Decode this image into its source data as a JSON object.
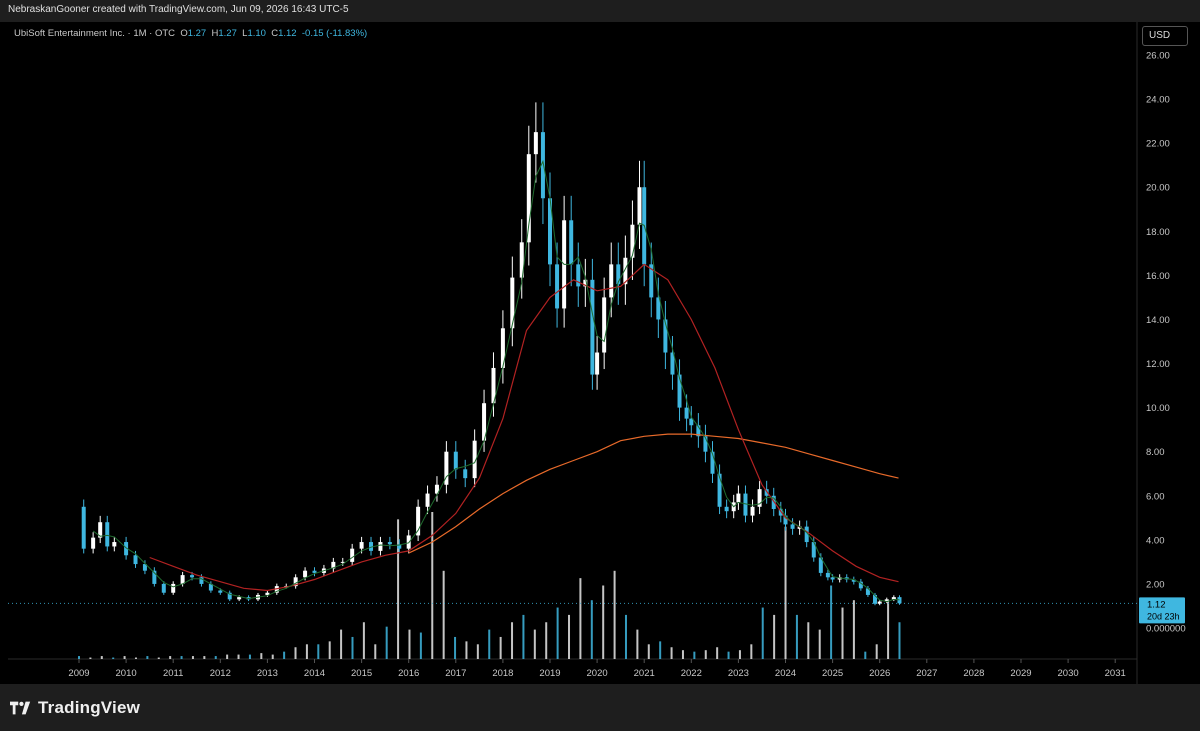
{
  "header": {
    "watermark": "NebraskanGooner created with TradingView.com, Jun 09, 2026 16:43 UTC-5"
  },
  "legend": {
    "symbol": "UbiSoft Entertainment Inc. · 1M · OTC",
    "o_label": "O",
    "o": "1.27",
    "h_label": "H",
    "h": "1.27",
    "l_label": "L",
    "l": "1.10",
    "c_label": "C",
    "c": "1.12",
    "change": "-0.15 (-11.83%)"
  },
  "currency_button": "USD",
  "price_tag": {
    "price": "1.12",
    "countdown": "20d 23h"
  },
  "footer": {
    "brand": "TradingView"
  },
  "colors": {
    "up": "#ffffff",
    "down": "#3fb7e0",
    "ma_fast": "#1f6b2e",
    "ma_mid": "#b22222",
    "ma_slow": "#e86a2a",
    "volume": "#3fb7e0"
  },
  "chart_data": {
    "type": "candlestick",
    "timeframe": "monthly",
    "y_ticks": [
      "26.00",
      "24.00",
      "22.00",
      "20.00",
      "18.00",
      "16.00",
      "14.00",
      "12.00",
      "10.00",
      "8.00",
      "6.00",
      "4.00",
      "2.00",
      "0.000000"
    ],
    "x_ticks": [
      "2009",
      "2010",
      "2011",
      "2012",
      "2013",
      "2014",
      "2015",
      "2016",
      "2017",
      "2018",
      "2019",
      "2020",
      "2021",
      "2022",
      "2023",
      "2024",
      "2025",
      "2026",
      "2027",
      "2028",
      "2029",
      "2030",
      "2031"
    ],
    "ylim": [
      0,
      26
    ],
    "xlim": [
      2009.0,
      2031.4
    ],
    "last_price": 1.12,
    "close_series": [
      [
        2009.0,
        5.5
      ],
      [
        2009.1,
        3.6
      ],
      [
        2009.3,
        4.1
      ],
      [
        2009.45,
        4.8
      ],
      [
        2009.6,
        3.7
      ],
      [
        2009.75,
        3.9
      ],
      [
        2010.0,
        3.3
      ],
      [
        2010.2,
        2.9
      ],
      [
        2010.4,
        2.6
      ],
      [
        2010.6,
        2.0
      ],
      [
        2010.8,
        1.6
      ],
      [
        2011.0,
        2.0
      ],
      [
        2011.2,
        2.4
      ],
      [
        2011.4,
        2.3
      ],
      [
        2011.6,
        2.0
      ],
      [
        2011.8,
        1.7
      ],
      [
        2012.0,
        1.6
      ],
      [
        2012.2,
        1.3
      ],
      [
        2012.4,
        1.4
      ],
      [
        2012.6,
        1.3
      ],
      [
        2012.8,
        1.5
      ],
      [
        2013.0,
        1.6
      ],
      [
        2013.2,
        1.9
      ],
      [
        2013.4,
        1.9
      ],
      [
        2013.6,
        2.3
      ],
      [
        2013.8,
        2.6
      ],
      [
        2014.0,
        2.5
      ],
      [
        2014.2,
        2.7
      ],
      [
        2014.4,
        3.0
      ],
      [
        2014.6,
        3.0
      ],
      [
        2014.8,
        3.6
      ],
      [
        2015.0,
        3.9
      ],
      [
        2015.2,
        3.5
      ],
      [
        2015.4,
        3.9
      ],
      [
        2015.6,
        3.8
      ],
      [
        2015.8,
        3.6
      ],
      [
        2016.0,
        4.2
      ],
      [
        2016.2,
        5.5
      ],
      [
        2016.4,
        6.1
      ],
      [
        2016.6,
        6.5
      ],
      [
        2016.8,
        8.0
      ],
      [
        2017.0,
        7.2
      ],
      [
        2017.2,
        6.8
      ],
      [
        2017.4,
        8.5
      ],
      [
        2017.6,
        10.2
      ],
      [
        2017.8,
        11.8
      ],
      [
        2018.0,
        13.6
      ],
      [
        2018.2,
        15.9
      ],
      [
        2018.4,
        17.5
      ],
      [
        2018.55,
        21.5
      ],
      [
        2018.7,
        22.5
      ],
      [
        2018.85,
        19.5
      ],
      [
        2019.0,
        16.5
      ],
      [
        2019.15,
        14.5
      ],
      [
        2019.3,
        18.5
      ],
      [
        2019.45,
        16.5
      ],
      [
        2019.6,
        15.5
      ],
      [
        2019.75,
        15.8
      ],
      [
        2019.9,
        11.5
      ],
      [
        2020.0,
        12.5
      ],
      [
        2020.15,
        15.0
      ],
      [
        2020.3,
        16.5
      ],
      [
        2020.45,
        15.6
      ],
      [
        2020.6,
        16.8
      ],
      [
        2020.75,
        18.3
      ],
      [
        2020.9,
        20.0
      ],
      [
        2021.0,
        16.5
      ],
      [
        2021.15,
        15.0
      ],
      [
        2021.3,
        14.0
      ],
      [
        2021.45,
        12.5
      ],
      [
        2021.6,
        11.5
      ],
      [
        2021.75,
        10.0
      ],
      [
        2021.9,
        9.5
      ],
      [
        2022.0,
        9.2
      ],
      [
        2022.15,
        8.7
      ],
      [
        2022.3,
        8.0
      ],
      [
        2022.45,
        7.0
      ],
      [
        2022.6,
        5.5
      ],
      [
        2022.75,
        5.3
      ],
      [
        2022.9,
        5.7
      ],
      [
        2023.0,
        6.1
      ],
      [
        2023.15,
        5.1
      ],
      [
        2023.3,
        5.5
      ],
      [
        2023.45,
        6.3
      ],
      [
        2023.6,
        6.0
      ],
      [
        2023.75,
        5.4
      ],
      [
        2023.9,
        5.1
      ],
      [
        2024.0,
        4.7
      ],
      [
        2024.15,
        4.5
      ],
      [
        2024.3,
        4.6
      ],
      [
        2024.45,
        3.9
      ],
      [
        2024.6,
        3.2
      ],
      [
        2024.75,
        2.5
      ],
      [
        2024.9,
        2.3
      ],
      [
        2025.0,
        2.2
      ],
      [
        2025.15,
        2.3
      ],
      [
        2025.3,
        2.2
      ],
      [
        2025.45,
        2.1
      ],
      [
        2025.6,
        1.8
      ],
      [
        2025.75,
        1.5
      ],
      [
        2025.9,
        1.1
      ],
      [
        2026.0,
        1.2
      ],
      [
        2026.15,
        1.3
      ],
      [
        2026.3,
        1.4
      ],
      [
        2026.42,
        1.12
      ]
    ],
    "ma_slow": [
      [
        2016.0,
        3.4
      ],
      [
        2016.5,
        3.9
      ],
      [
        2017.0,
        4.6
      ],
      [
        2017.5,
        5.4
      ],
      [
        2018.0,
        6.1
      ],
      [
        2018.5,
        6.7
      ],
      [
        2019.0,
        7.2
      ],
      [
        2019.5,
        7.6
      ],
      [
        2020.0,
        8.0
      ],
      [
        2020.5,
        8.5
      ],
      [
        2021.0,
        8.7
      ],
      [
        2021.5,
        8.8
      ],
      [
        2022.0,
        8.8
      ],
      [
        2022.5,
        8.7
      ],
      [
        2023.0,
        8.6
      ],
      [
        2023.5,
        8.4
      ],
      [
        2024.0,
        8.2
      ],
      [
        2024.5,
        7.9
      ],
      [
        2025.0,
        7.6
      ],
      [
        2025.5,
        7.3
      ],
      [
        2026.0,
        7.0
      ],
      [
        2026.4,
        6.8
      ]
    ],
    "ma_mid": [
      [
        2010.5,
        3.2
      ],
      [
        2011.0,
        2.8
      ],
      [
        2011.5,
        2.4
      ],
      [
        2012.0,
        2.1
      ],
      [
        2012.5,
        1.8
      ],
      [
        2013.0,
        1.7
      ],
      [
        2013.5,
        1.9
      ],
      [
        2014.0,
        2.2
      ],
      [
        2014.5,
        2.6
      ],
      [
        2015.0,
        3.0
      ],
      [
        2015.5,
        3.3
      ],
      [
        2016.0,
        3.5
      ],
      [
        2016.5,
        4.2
      ],
      [
        2017.0,
        5.2
      ],
      [
        2017.5,
        6.8
      ],
      [
        2018.0,
        9.5
      ],
      [
        2018.5,
        13.5
      ],
      [
        2019.0,
        15.0
      ],
      [
        2019.5,
        15.8
      ],
      [
        2020.0,
        15.3
      ],
      [
        2020.5,
        15.5
      ],
      [
        2021.0,
        16.5
      ],
      [
        2021.5,
        15.8
      ],
      [
        2022.0,
        14.0
      ],
      [
        2022.5,
        11.8
      ],
      [
        2023.0,
        9.0
      ],
      [
        2023.5,
        6.5
      ],
      [
        2024.0,
        5.0
      ],
      [
        2024.5,
        4.3
      ],
      [
        2025.0,
        3.5
      ],
      [
        2025.5,
        2.8
      ],
      [
        2026.0,
        2.3
      ],
      [
        2026.4,
        2.1
      ]
    ],
    "volume_relative": [
      0.02,
      0.01,
      0.02,
      0.01,
      0.02,
      0.01,
      0.02,
      0.01,
      0.02,
      0.02,
      0.02,
      0.02,
      0.02,
      0.03,
      0.03,
      0.03,
      0.04,
      0.03,
      0.05,
      0.08,
      0.1,
      0.1,
      0.12,
      0.2,
      0.15,
      0.25,
      0.1,
      0.22,
      0.95,
      0.2,
      0.18,
      1.0,
      0.6,
      0.15,
      0.12,
      0.1,
      0.2,
      0.15,
      0.25,
      0.3,
      0.2,
      0.25,
      0.35,
      0.3,
      0.55,
      0.4,
      0.5,
      0.6,
      0.3,
      0.2,
      0.1,
      0.12,
      0.08,
      0.06,
      0.05,
      0.06,
      0.08,
      0.05,
      0.06,
      0.1,
      0.35,
      0.3,
      0.9,
      0.3,
      0.25,
      0.2,
      0.5,
      0.35,
      0.4,
      0.05,
      0.1,
      0.4,
      0.25
    ]
  }
}
